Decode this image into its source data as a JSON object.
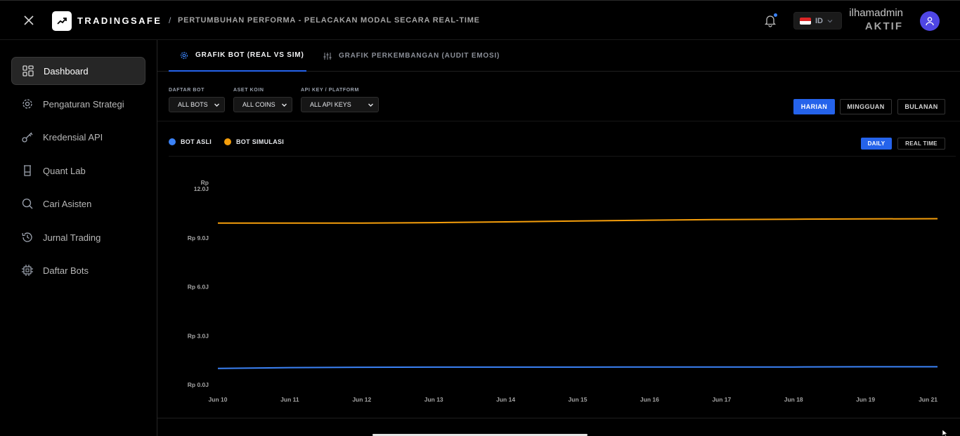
{
  "header": {
    "brand": "TRADINGSAFE",
    "breadcrumb_sep": "/",
    "page_title": "PERTUMBUHAN PERFORMA - PELACAKAN MODAL SECARA REAL-TIME",
    "language": "ID",
    "user_name": "ilhamadmin",
    "user_status": "AKTIF"
  },
  "sidebar": {
    "items": [
      {
        "label": "Dashboard",
        "icon": "dashboard-icon",
        "active": true
      },
      {
        "label": "Pengaturan Strategi",
        "icon": "gear-icon"
      },
      {
        "label": "Kredensial API",
        "icon": "key-icon"
      },
      {
        "label": "Quant Lab",
        "icon": "beaker-icon"
      },
      {
        "label": "Cari Asisten",
        "icon": "search-icon"
      },
      {
        "label": "Jurnal Trading",
        "icon": "history-icon"
      },
      {
        "label": "Daftar Bots",
        "icon": "chip-icon"
      }
    ]
  },
  "tabs": [
    {
      "label": "GRAFIK BOT (REAL VS SIM)",
      "icon": "gear-icon",
      "active": true
    },
    {
      "label": "GRAFIK PERKEMBANGAN (AUDIT EMOSI)",
      "icon": "sliders-icon"
    }
  ],
  "filters": {
    "bot": {
      "label": "DAFTAR BOT",
      "value": "ALL BOTS"
    },
    "coin": {
      "label": "ASET KOIN",
      "value": "ALL COINS"
    },
    "api": {
      "label": "API KEY / PLATFORM",
      "value": "ALL API KEYS"
    }
  },
  "periods": [
    "HARIAN",
    "MINGGUAN",
    "BULANAN"
  ],
  "modes": [
    "DAILY",
    "REAL TIME"
  ],
  "legend": [
    {
      "name": "BOT ASLI",
      "color": "#3b82f6"
    },
    {
      "name": "BOT SIMULASI",
      "color": "#f59e0b"
    }
  ],
  "chart_data": {
    "type": "line",
    "x": [
      "Jun 10",
      "Jun 11",
      "Jun 12",
      "Jun 13",
      "Jun 14",
      "Jun 15",
      "Jun 16",
      "Jun 17",
      "Jun 18",
      "Jun 19",
      "Jun 21"
    ],
    "y_ticks": [
      "Rp 0.0J",
      "Rp 3.0J",
      "Rp 6.0J",
      "Rp 9.0J",
      "Rp 12.0J"
    ],
    "ylim": [
      0,
      12
    ],
    "series": [
      {
        "name": "BOT ASLI",
        "color": "#3b82f6",
        "values": [
          1.0,
          1.05,
          1.07,
          1.08,
          1.08,
          1.08,
          1.09,
          1.09,
          1.09,
          1.1,
          1.1
        ]
      },
      {
        "name": "BOT SIMULASI",
        "color": "#f59e0b",
        "values": [
          9.9,
          9.9,
          9.9,
          9.93,
          9.98,
          10.03,
          10.08,
          10.12,
          10.14,
          10.16,
          10.17
        ]
      }
    ],
    "grid": false
  }
}
